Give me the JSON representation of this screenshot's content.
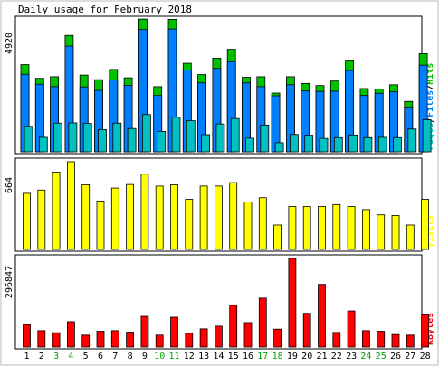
{
  "chart_data": {
    "type": "bar",
    "title": "Daily usage for February 2018",
    "days": [
      1,
      2,
      3,
      4,
      5,
      6,
      7,
      8,
      9,
      10,
      11,
      12,
      13,
      14,
      15,
      16,
      17,
      18,
      19,
      20,
      21,
      22,
      23,
      24,
      25,
      26,
      27,
      28
    ],
    "weekend_days": [
      3,
      4,
      10,
      11,
      17,
      18,
      24,
      25
    ],
    "panels": [
      {
        "name": "hits_files_pages",
        "max_label": "4920",
        "ymax": 4920,
        "legend": [
          {
            "text": "Pages",
            "color": "#00c0c0"
          },
          {
            "text": "/",
            "color": "#000000"
          },
          {
            "text": "Files",
            "color": "#0080ff"
          },
          {
            "text": "/",
            "color": "#000000"
          },
          {
            "text": "Hits",
            "color": "#00c000"
          }
        ],
        "series": [
          {
            "name": "Hits",
            "color": "#00c000",
            "values": [
              3250,
              2740,
              2800,
              4340,
              2860,
              2690,
              3070,
              2760,
              4950,
              2430,
              4940,
              3300,
              2880,
              3490,
              3820,
              2780,
              2800,
              2190,
              2800,
              2550,
              2470,
              2640,
              3420,
              2360,
              2340,
              2500,
              1880,
              3660
            ]
          },
          {
            "name": "Files",
            "color": "#0080ff",
            "values": [
              2890,
              2520,
              2430,
              3940,
              2420,
              2290,
              2680,
              2480,
              4560,
              2100,
              4580,
              3050,
              2570,
              3110,
              3360,
              2570,
              2430,
              2090,
              2500,
              2270,
              2250,
              2260,
              3030,
              2100,
              2180,
              2240,
              1670,
              3230
            ]
          },
          {
            "name": "Pages",
            "color": "#00c0c0",
            "values": [
              950,
              540,
              1070,
              1080,
              1060,
              830,
              1070,
              870,
              1390,
              760,
              1290,
              1160,
              640,
              1040,
              1240,
              510,
              1000,
              340,
              650,
              620,
              500,
              530,
              630,
              530,
              540,
              530,
              850,
              1200
            ]
          }
        ]
      },
      {
        "name": "visits",
        "max_label": "664",
        "ymax": 664,
        "legend": [
          {
            "text": "Visits",
            "color": "#ffff00"
          }
        ],
        "series": [
          {
            "name": "Visits",
            "color": "#ffff00",
            "values": [
              425,
              450,
              585,
              664,
              490,
              367,
              465,
              492,
              570,
              480,
              490,
              380,
              480,
              480,
              506,
              360,
              392,
              185,
              325,
              325,
              325,
              340,
              325,
              302,
              262,
              257,
              185,
              380
            ]
          }
        ]
      },
      {
        "name": "kbytes",
        "max_label": "296847",
        "ymax": 296847,
        "legend": [
          {
            "text": "KBytes",
            "color": "#ff0000"
          }
        ],
        "series": [
          {
            "name": "KBytes",
            "color": "#ff0000",
            "values": [
              75000,
              55000,
              48000,
              85000,
              40000,
              53000,
              55000,
              50000,
              103000,
              40000,
              100000,
              46000,
              61000,
              70000,
              140000,
              82000,
              164000,
              60000,
              296847,
              113000,
              210000,
              49000,
              121000,
              55000,
              53000,
              42000,
              40000,
              108000
            ]
          }
        ]
      }
    ]
  }
}
